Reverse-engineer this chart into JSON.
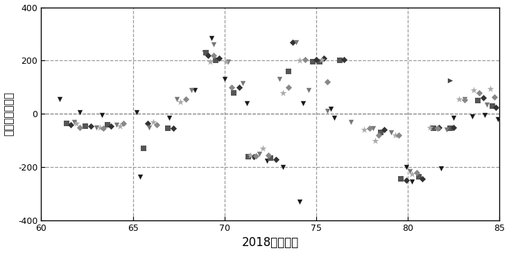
{
  "title": "",
  "xlabel": "2018年内积日",
  "ylabel": "相对误差（米）",
  "xlim": [
    60,
    85
  ],
  "ylim": [
    -400,
    400
  ],
  "xticks": [
    60,
    65,
    70,
    75,
    80,
    85
  ],
  "yticks": [
    -400,
    -200,
    0,
    200,
    400
  ],
  "vlines": [
    65,
    70,
    75,
    80
  ],
  "hlines": [
    -200,
    0,
    200
  ],
  "figsize": [
    7.34,
    3.65
  ],
  "dpi": 100,
  "series": [
    {
      "marker": "v",
      "color": "#1a1a1a",
      "size": 28,
      "alpha": 1.0,
      "x": [
        61.0,
        62.1,
        63.3,
        65.2,
        65.4,
        67.0,
        68.4,
        68.9,
        69.3,
        70.0,
        71.2,
        72.3,
        73.2,
        74.1,
        74.3,
        75.8,
        76.0,
        79.9,
        80.2,
        81.8,
        82.5,
        83.5,
        84.2,
        84.9
      ],
      "y": [
        55,
        5,
        -5,
        5,
        -235,
        -15,
        90,
        230,
        285,
        130,
        40,
        -175,
        -200,
        -330,
        40,
        20,
        -15,
        -200,
        -255,
        -205,
        -15,
        -10,
        -5,
        -20
      ]
    },
    {
      "marker": "s",
      "color": "#555555",
      "size": 28,
      "alpha": 1.0,
      "x": [
        61.4,
        62.4,
        63.6,
        65.6,
        66.9,
        69.0,
        69.5,
        70.5,
        71.3,
        72.5,
        73.5,
        74.8,
        75.2,
        76.3,
        78.5,
        79.6,
        80.6,
        81.4,
        82.3,
        83.8,
        84.6
      ],
      "y": [
        -35,
        -45,
        -40,
        -130,
        -55,
        230,
        200,
        80,
        -160,
        -165,
        160,
        195,
        195,
        200,
        -70,
        -245,
        -235,
        -55,
        -55,
        50,
        30
      ]
    },
    {
      "marker": "D",
      "color": "#333333",
      "size": 22,
      "alpha": 1.0,
      "x": [
        61.6,
        62.7,
        63.8,
        65.8,
        67.2,
        69.1,
        69.7,
        70.8,
        71.6,
        72.8,
        73.7,
        75.0,
        75.4,
        76.5,
        78.7,
        79.9,
        80.8,
        81.7,
        82.5,
        84.1,
        84.8
      ],
      "y": [
        -40,
        -45,
        -45,
        -35,
        -55,
        220,
        210,
        100,
        -160,
        -170,
        270,
        205,
        210,
        205,
        -60,
        -250,
        -245,
        -50,
        -50,
        60,
        25
      ]
    },
    {
      "marker": "v",
      "color": "#777777",
      "size": 28,
      "alpha": 1.0,
      "x": [
        61.8,
        63.0,
        64.1,
        65.9,
        67.4,
        68.2,
        69.4,
        70.2,
        71.0,
        71.9,
        73.0,
        73.9,
        74.6,
        75.6,
        76.9,
        78.1,
        79.1,
        80.1,
        82.1,
        83.1,
        84.3
      ],
      "y": [
        -30,
        -50,
        -40,
        -50,
        55,
        90,
        260,
        195,
        115,
        -150,
        130,
        270,
        90,
        10,
        -30,
        -55,
        -70,
        -215,
        -60,
        55,
        35
      ]
    },
    {
      "marker": "*",
      "color": "#aaaaaa",
      "size": 55,
      "alpha": 1.0,
      "x": [
        61.9,
        63.2,
        64.3,
        66.1,
        67.6,
        69.2,
        70.1,
        71.4,
        72.1,
        73.2,
        74.1,
        75.3,
        77.6,
        78.2,
        79.3,
        80.2,
        81.2,
        82.8,
        83.6,
        84.5
      ],
      "y": [
        -35,
        -50,
        -45,
        -30,
        45,
        195,
        195,
        -155,
        -130,
        80,
        200,
        205,
        -60,
        -100,
        -80,
        -225,
        -50,
        55,
        90,
        95
      ]
    },
    {
      "marker": "D",
      "color": "#888888",
      "size": 22,
      "alpha": 1.0,
      "x": [
        62.1,
        63.4,
        64.5,
        66.3,
        67.9,
        69.4,
        70.4,
        71.7,
        72.4,
        73.5,
        74.4,
        75.6,
        77.9,
        78.4,
        79.5,
        80.5,
        81.6,
        83.1,
        83.9,
        84.7
      ],
      "y": [
        -50,
        -55,
        -35,
        -40,
        55,
        220,
        100,
        -158,
        -155,
        100,
        205,
        120,
        -55,
        -80,
        -80,
        -220,
        -55,
        52,
        78,
        62
      ]
    },
    {
      "marker": ">",
      "color": "#444444",
      "size": 28,
      "alpha": 1.0,
      "x": [
        82.3
      ],
      "y": [
        125
      ]
    }
  ]
}
